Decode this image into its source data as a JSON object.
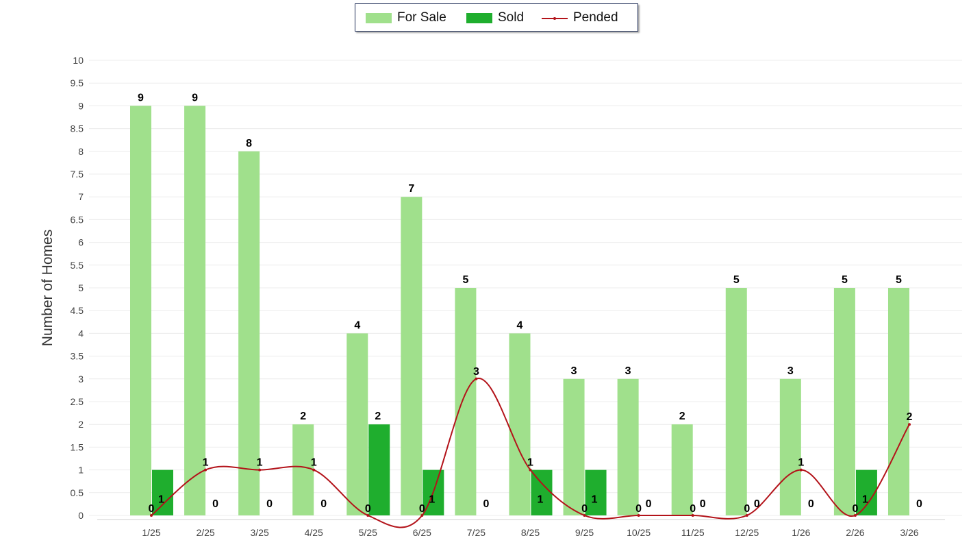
{
  "chart_data": {
    "type": "bar",
    "title": "",
    "xlabel": "",
    "ylabel": "Number of Homes",
    "ylim": [
      0,
      10
    ],
    "ytick_step": 0.5,
    "yticks": [
      "0",
      "0.5",
      "1",
      "1.5",
      "2",
      "2.5",
      "3",
      "3.5",
      "4",
      "4.5",
      "5",
      "5.5",
      "6",
      "6.5",
      "7",
      "7.5",
      "8",
      "8.5",
      "9",
      "9.5",
      "10"
    ],
    "grid": true,
    "legend_position": "top-center",
    "categories": [
      "1/25",
      "2/25",
      "3/25",
      "4/25",
      "5/25",
      "6/25",
      "7/25",
      "8/25",
      "9/25",
      "10/25",
      "11/25",
      "12/25",
      "1/26",
      "2/26",
      "3/26"
    ],
    "series": [
      {
        "name": "For Sale",
        "kind": "bar",
        "color": "#a0e08c",
        "values": [
          9,
          9,
          8,
          2,
          4,
          7,
          5,
          4,
          3,
          3,
          2,
          5,
          3,
          5,
          5
        ]
      },
      {
        "name": "Sold",
        "kind": "bar",
        "color": "#1fae2e",
        "values": [
          1,
          0,
          0,
          0,
          2,
          1,
          0,
          1,
          1,
          0,
          0,
          0,
          0,
          1,
          0
        ]
      },
      {
        "name": "Pended",
        "kind": "line",
        "color": "#b3131a",
        "values": [
          0,
          1,
          1,
          1,
          0,
          0,
          3,
          1,
          0,
          0,
          0,
          0,
          1,
          0,
          2
        ]
      }
    ]
  }
}
